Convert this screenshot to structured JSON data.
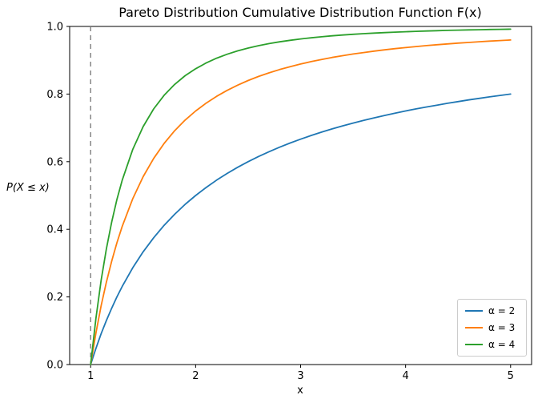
{
  "chart_data": {
    "type": "line",
    "title": "Pareto Distribution Cumulative Distribution Function F(x)",
    "xlabel": "x",
    "ylabel": "P(X ≤ x)",
    "xlim": [
      0.8,
      5.2
    ],
    "ylim": [
      0.0,
      1.0
    ],
    "x_ticks": [
      1,
      2,
      3,
      4,
      5
    ],
    "x_tick_labels": [
      "1",
      "2",
      "3",
      "4",
      "5"
    ],
    "y_ticks": [
      0.0,
      0.2,
      0.4,
      0.6,
      0.8,
      1.0
    ],
    "y_tick_labels": [
      "0.0",
      "0.2",
      "0.4",
      "0.6",
      "0.8",
      "1.0"
    ],
    "grid": false,
    "legend_position": "lower right",
    "vline": {
      "x": 1.0,
      "style": "dashed",
      "color": "#7f7f7f"
    },
    "x": [
      1.0,
      1.05,
      1.1,
      1.15,
      1.2,
      1.25,
      1.3,
      1.4,
      1.5,
      1.6,
      1.7,
      1.8,
      1.9,
      2.0,
      2.1,
      2.2,
      2.3,
      2.4,
      2.5,
      2.6,
      2.7,
      2.8,
      2.9,
      3.0,
      3.1,
      3.2,
      3.3,
      3.4,
      3.5,
      3.6,
      3.7,
      3.8,
      3.9,
      4.0,
      4.1,
      4.2,
      4.3,
      4.4,
      4.5,
      4.6,
      4.7,
      4.8,
      4.9,
      5.0
    ],
    "series": [
      {
        "name": "α = 2",
        "color": "#1f77b4",
        "values": [
          0.0,
          0.0476,
          0.0909,
          0.1304,
          0.1667,
          0.2,
          0.2308,
          0.2857,
          0.3333,
          0.375,
          0.4118,
          0.4444,
          0.4737,
          0.5,
          0.5238,
          0.5455,
          0.5652,
          0.5833,
          0.6,
          0.6154,
          0.6296,
          0.6429,
          0.6552,
          0.6667,
          0.6774,
          0.6875,
          0.697,
          0.7059,
          0.7143,
          0.7222,
          0.7297,
          0.7368,
          0.7436,
          0.75,
          0.7561,
          0.7619,
          0.7674,
          0.7727,
          0.7778,
          0.7826,
          0.7872,
          0.7917,
          0.7959,
          0.8
        ]
      },
      {
        "name": "α = 3",
        "color": "#ff7f0e",
        "values": [
          0.0,
          0.093,
          0.1736,
          0.2439,
          0.3056,
          0.36,
          0.4083,
          0.4898,
          0.5556,
          0.6094,
          0.654,
          0.6914,
          0.723,
          0.75,
          0.7732,
          0.7934,
          0.811,
          0.8264,
          0.84,
          0.8521,
          0.8628,
          0.8724,
          0.8811,
          0.8889,
          0.8959,
          0.9023,
          0.9082,
          0.9135,
          0.9184,
          0.9228,
          0.927,
          0.9307,
          0.9343,
          0.9375,
          0.9405,
          0.9433,
          0.9459,
          0.9483,
          0.9506,
          0.9527,
          0.9547,
          0.9566,
          0.9584,
          0.96
        ]
      },
      {
        "name": "α = 4",
        "color": "#2ca02c",
        "values": [
          0.0,
          0.1362,
          0.2487,
          0.3425,
          0.4213,
          0.488,
          0.5448,
          0.6356,
          0.7037,
          0.7559,
          0.7965,
          0.8285,
          0.8542,
          0.875,
          0.892,
          0.9061,
          0.9178,
          0.9277,
          0.936,
          0.9431,
          0.9492,
          0.9544,
          0.959,
          0.963,
          0.9664,
          0.9695,
          0.9722,
          0.9746,
          0.9767,
          0.9786,
          0.9803,
          0.9818,
          0.9831,
          0.9844,
          0.9855,
          0.9865,
          0.9874,
          0.9883,
          0.989,
          0.9897,
          0.9904,
          0.991,
          0.9915,
          0.992
        ]
      }
    ]
  }
}
